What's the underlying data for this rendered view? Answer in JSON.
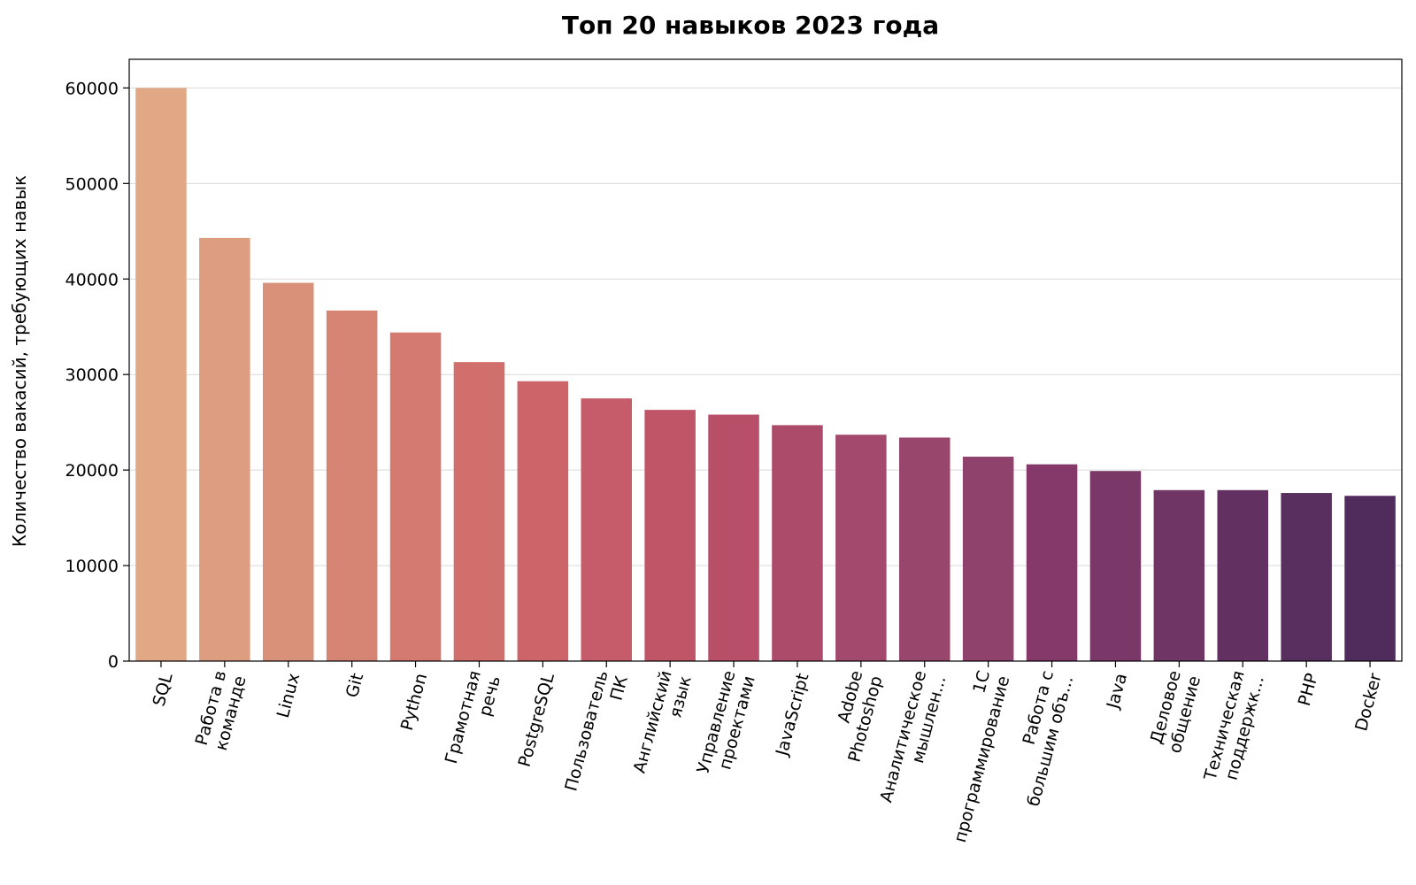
{
  "chart_data": {
    "type": "bar",
    "title": "Топ 20 навыков 2023 года",
    "xlabel": "",
    "ylabel": "Количество вакасий, требующих навык",
    "ylim": [
      0,
      63000
    ],
    "yticks": [
      0,
      10000,
      20000,
      30000,
      40000,
      50000,
      60000
    ],
    "grid": "horizontal",
    "categories": [
      "SQL",
      "Работа в\nкоманде",
      "Linux",
      "Git",
      "Python",
      "Грамотная\nречь",
      "PostgreSQL",
      "Пользователь\nПК",
      "Английский\nязык",
      "Управление\nпроектами",
      "JavaScript",
      "Adobe\nPhotoshop",
      "Аналитическое\nмышлен...",
      "1С\nпрограммирование",
      "Работа с\nбольшим объ...",
      "Java",
      "Деловое\nобщение",
      "Техническая\nподдержк...",
      "PHP",
      "Docker"
    ],
    "values": [
      60000,
      44300,
      39600,
      36700,
      34400,
      31300,
      29300,
      27500,
      26300,
      25800,
      24700,
      23700,
      23400,
      21400,
      20600,
      19900,
      17900,
      17900,
      17600,
      17300
    ],
    "colors": [
      "#e1a886",
      "#dd9d80",
      "#da917a",
      "#d68574",
      "#d47a70",
      "#d06f6c",
      "#cc646a",
      "#c65c69",
      "#c05568",
      "#b84f68",
      "#ad4b6a",
      "#a3496d",
      "#99466d",
      "#8e426c",
      "#84396a",
      "#7a3868",
      "#6e3565",
      "#633161",
      "#582f5e",
      "#4f2c5c"
    ]
  }
}
